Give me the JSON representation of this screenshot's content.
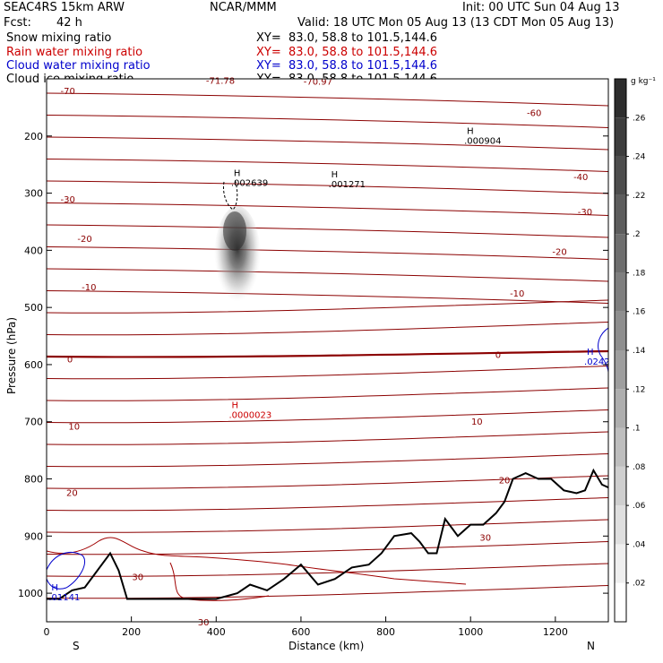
{
  "header": {
    "model": "SEAC4RS 15km ARW",
    "fcst_label": "Fcst:",
    "fcst_value": "42 h",
    "center": "NCAR/MMM",
    "init": "Init: 00 UTC Sun 04 Aug 13",
    "valid": "Valid: 18 UTC Mon 05 Aug 13 (13 CDT Mon 05 Aug 13)"
  },
  "fields": [
    {
      "name": "Snow mixing ratio",
      "xy": "XY=  83.0, 58.8 to 101.5,144.6",
      "color": "#000000"
    },
    {
      "name": "Rain water mixing ratio",
      "xy": "XY=  83.0, 58.8 to 101.5,144.6",
      "color": "#cc0000"
    },
    {
      "name": "Cloud water mixing ratio",
      "xy": "XY=  83.0, 58.8 to 101.5,144.6",
      "color": "#0000cc"
    },
    {
      "name": "Cloud ice mixing ratio",
      "xy": "XY=  83.0, 58.8 to 101.5,144.6",
      "color": "#000000"
    }
  ],
  "chart_data": {
    "type": "heatmap",
    "xlabel": "Distance (km)",
    "ylabel": "Pressure (hPa)",
    "xlim": [
      0,
      1325
    ],
    "ylim": [
      1050,
      100
    ],
    "x_ticks": [
      0,
      200,
      400,
      600,
      800,
      1000,
      1200
    ],
    "y_ticks": [
      200,
      300,
      400,
      500,
      600,
      700,
      800,
      900,
      1000
    ],
    "end_labels": {
      "left": "S",
      "right": "N"
    },
    "colorbar": {
      "unit": "g kg⁻¹",
      "ticks": [
        ".02",
        ".04",
        ".06",
        ".08",
        ".1",
        ".12",
        ".14",
        ".16",
        ".18",
        ".2",
        ".22",
        ".24",
        ".26"
      ],
      "min": 0,
      "max": 0.28
    },
    "temperature_isotherms": {
      "color": "#8b0000",
      "labels": [
        {
          "text": "-70",
          "x": 50,
          "p": 127
        },
        {
          "text": "-71.78",
          "x": 410,
          "p": 109
        },
        {
          "text": "-70.97",
          "x": 640,
          "p": 110
        },
        {
          "text": "-60",
          "x": 1150,
          "p": 165
        },
        {
          "text": "-40",
          "x": 1260,
          "p": 277
        },
        {
          "text": "-30",
          "x": 50,
          "p": 316
        },
        {
          "text": "-30",
          "x": 1270,
          "p": 338
        },
        {
          "text": "-20",
          "x": 90,
          "p": 385
        },
        {
          "text": "-20",
          "x": 1210,
          "p": 408
        },
        {
          "text": "-10",
          "x": 100,
          "p": 470
        },
        {
          "text": "-10",
          "x": 1110,
          "p": 481
        },
        {
          "text": "0",
          "x": 55,
          "p": 596
        },
        {
          "text": "0",
          "x": 1065,
          "p": 588
        },
        {
          "text": "10",
          "x": 65,
          "p": 714
        },
        {
          "text": "10",
          "x": 1015,
          "p": 705
        },
        {
          "text": "20",
          "x": 60,
          "p": 830
        },
        {
          "text": "20",
          "x": 1080,
          "p": 808
        },
        {
          "text": "30",
          "x": 215,
          "p": 977
        },
        {
          "text": "30",
          "x": 1035,
          "p": 908
        },
        {
          "text": "30",
          "x": 370,
          "p": 1087
        }
      ]
    },
    "maxima": [
      {
        "text": ".002639",
        "x": 435,
        "p": 287,
        "color": "#000000"
      },
      {
        "text": ".001271",
        "x": 665,
        "p": 290,
        "color": "#000000"
      },
      {
        "text": ".000904",
        "x": 985,
        "p": 214,
        "color": "#000000"
      },
      {
        "text": ".0000023",
        "x": 430,
        "p": 693,
        "color": "#cc0000"
      },
      {
        "text": ".0242",
        "x": 1268,
        "p": 600,
        "color": "#0000cc"
      },
      {
        "text": ".01141",
        "x": 5,
        "p": 1012,
        "color": "#0000cc"
      }
    ],
    "max_marker": "H",
    "terrain_surface_pressure": [
      [
        0,
        1010
      ],
      [
        30,
        1010
      ],
      [
        60,
        995
      ],
      [
        90,
        990
      ],
      [
        120,
        960
      ],
      [
        150,
        930
      ],
      [
        170,
        960
      ],
      [
        190,
        1010
      ],
      [
        300,
        1010
      ],
      [
        400,
        1010
      ],
      [
        450,
        1000
      ],
      [
        480,
        985
      ],
      [
        520,
        995
      ],
      [
        560,
        975
      ],
      [
        600,
        950
      ],
      [
        640,
        985
      ],
      [
        680,
        975
      ],
      [
        720,
        955
      ],
      [
        760,
        950
      ],
      [
        790,
        930
      ],
      [
        820,
        900
      ],
      [
        860,
        895
      ],
      [
        880,
        910
      ],
      [
        900,
        930
      ],
      [
        920,
        930
      ],
      [
        940,
        870
      ],
      [
        970,
        900
      ],
      [
        1000,
        880
      ],
      [
        1030,
        880
      ],
      [
        1060,
        860
      ],
      [
        1080,
        840
      ],
      [
        1100,
        800
      ],
      [
        1130,
        790
      ],
      [
        1160,
        800
      ],
      [
        1190,
        800
      ],
      [
        1220,
        820
      ],
      [
        1250,
        825
      ],
      [
        1270,
        820
      ],
      [
        1290,
        785
      ],
      [
        1310,
        810
      ],
      [
        1325,
        815
      ]
    ]
  }
}
